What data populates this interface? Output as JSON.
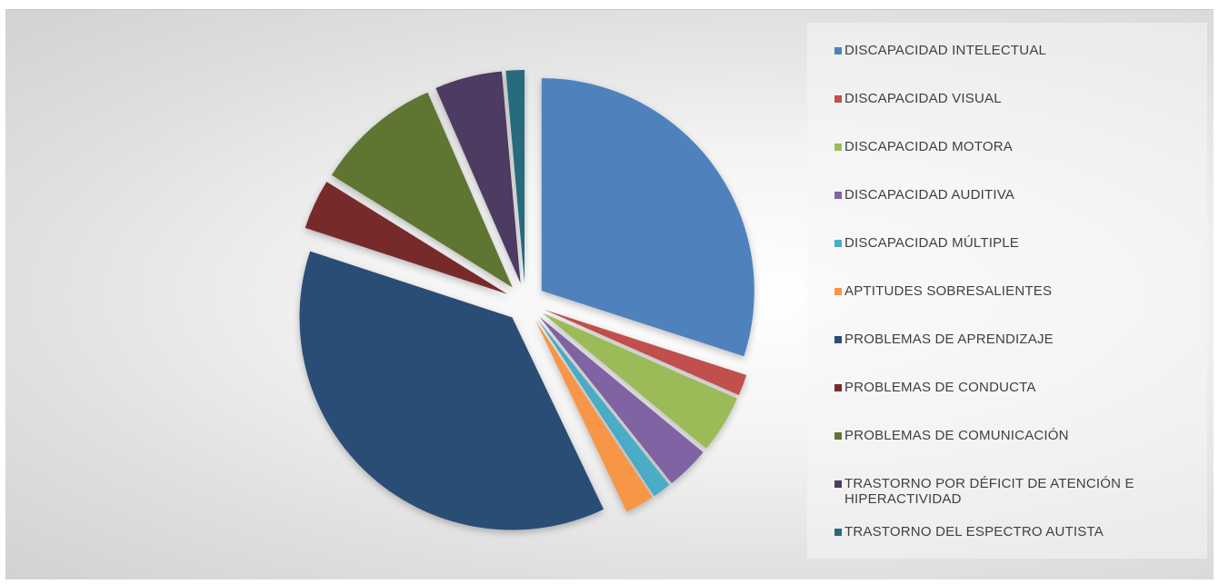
{
  "chart_data": {
    "type": "pie",
    "title": "",
    "exploded": true,
    "legend_position": "right",
    "series": [
      {
        "values": [
          29.9,
          1.6,
          4.4,
          3.3,
          1.4,
          2.2,
          37.0,
          3.8,
          9.6,
          5.1,
          1.4
        ]
      }
    ],
    "categories": [
      "DISCAPACIDAD INTELECTUAL",
      "DISCAPACIDAD VISUAL",
      "DISCAPACIDAD MOTORA",
      "DISCAPACIDAD AUDITIVA",
      "DISCAPACIDAD MÚLTIPLE",
      "APTITUDES SOBRESALIENTES",
      "PROBLEMAS DE APRENDIZAJE",
      "PROBLEMAS DE CONDUCTA",
      "PROBLEMAS DE COMUNICACIÓN",
      "TRASTORNO POR DÉFICIT DE ATENCIÓN E HIPERACTIVIDAD",
      "TRASTORNO DEL ESPECTRO AUTISTA"
    ],
    "colors": [
      "#4f81bd",
      "#c0504d",
      "#9bbb59",
      "#8064a2",
      "#4bacc6",
      "#f79646",
      "#2c4d75",
      "#772c2a",
      "#5f7530",
      "#4d3b62",
      "#276a7c"
    ]
  }
}
